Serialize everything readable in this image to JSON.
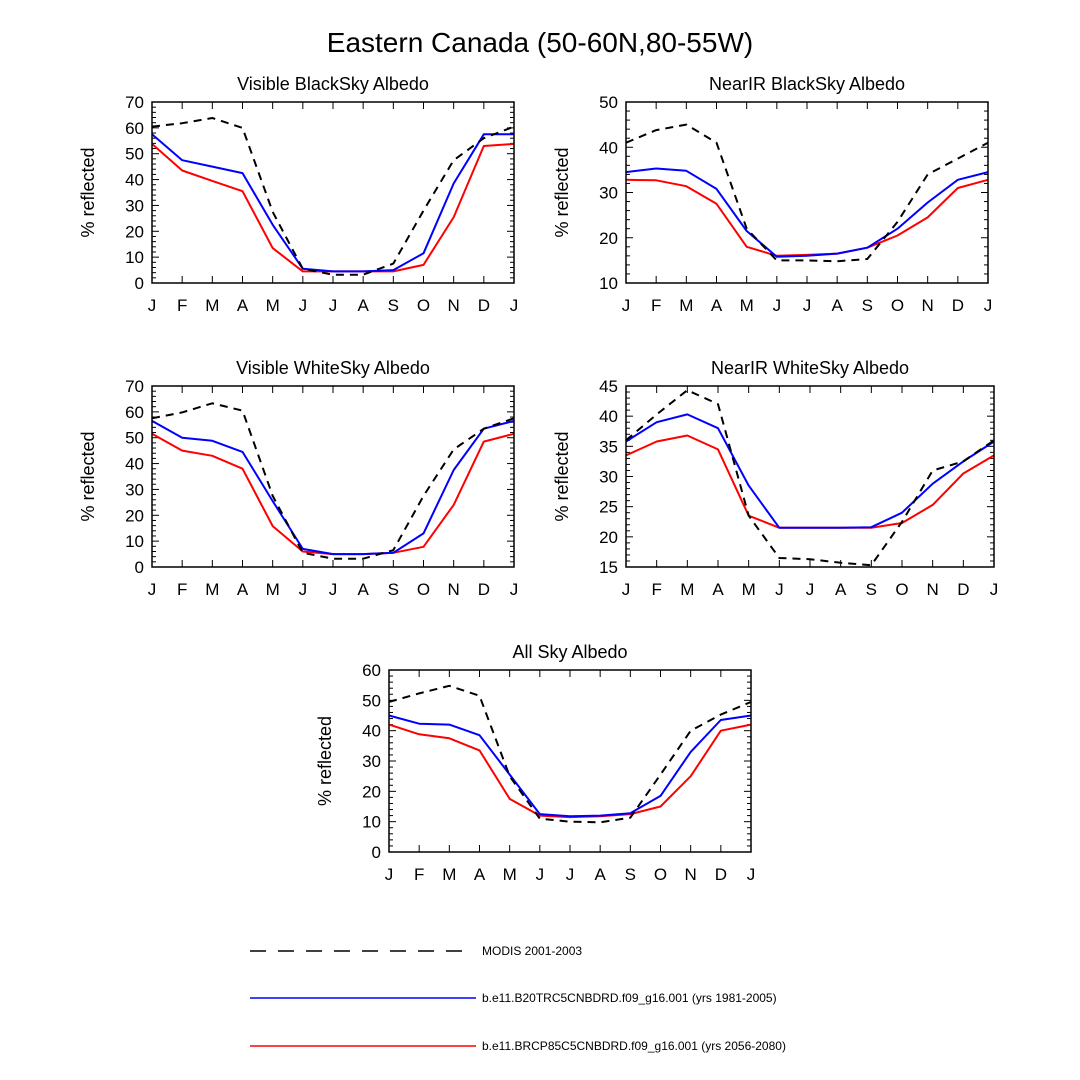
{
  "figure": {
    "title": "Eastern Canada (50-60N,80-55W)"
  },
  "legend": [
    {
      "key": "modis",
      "label": "MODIS 2001-2003",
      "color": "#000000",
      "dash": true
    },
    {
      "key": "hist",
      "label": "b.e11.B20TRC5CNBDRD.f09_g16.001 (yrs 1981-2005)",
      "color": "#0000ff",
      "dash": false
    },
    {
      "key": "future",
      "label": "b.e11.BRCP85C5CNBDRD.f09_g16.001 (yrs 2056-2080)",
      "color": "#ff0000",
      "dash": false
    }
  ],
  "chart_data": [
    {
      "type": "line",
      "title": "Visible BlackSky Albedo",
      "ylabel": "% reflected",
      "xlabel": "",
      "categories": [
        "J",
        "F",
        "M",
        "A",
        "M",
        "J",
        "J",
        "A",
        "S",
        "O",
        "N",
        "D",
        "J"
      ],
      "ylim": [
        0,
        70
      ],
      "yticks": [
        0,
        10,
        20,
        30,
        40,
        50,
        60,
        70
      ],
      "series": [
        {
          "name": "MODIS 2001-2003",
          "values": [
            60.5,
            61.8,
            63.8,
            60.0,
            27.5,
            5.5,
            3.2,
            3.2,
            7.5,
            28.0,
            47.5,
            56.0,
            60.5
          ]
        },
        {
          "name": "b.e11.B20TRC5CNBDRD.f09_g16.001 (yrs 1981-2005)",
          "values": [
            57.5,
            47.5,
            45.0,
            42.5,
            22.5,
            5.5,
            4.5,
            4.5,
            5.0,
            11.5,
            38.5,
            57.5,
            57.5
          ]
        },
        {
          "name": "b.e11.BRCP85C5CNBDRD.f09_g16.001 (yrs 2056-2080)",
          "values": [
            53.8,
            43.5,
            39.5,
            35.5,
            13.5,
            4.5,
            4.5,
            4.5,
            4.5,
            7.0,
            25.5,
            53.0,
            53.8
          ]
        }
      ]
    },
    {
      "type": "line",
      "title": "NearIR BlackSky Albedo",
      "ylabel": "% reflected",
      "xlabel": "",
      "categories": [
        "J",
        "F",
        "M",
        "A",
        "M",
        "J",
        "J",
        "A",
        "S",
        "O",
        "N",
        "D",
        "J"
      ],
      "ylim": [
        10,
        50
      ],
      "yticks": [
        10,
        20,
        30,
        40,
        50
      ],
      "series": [
        {
          "name": "MODIS 2001-2003",
          "values": [
            41.0,
            43.8,
            45.0,
            41.0,
            22.0,
            15.0,
            15.0,
            14.8,
            15.3,
            23.5,
            34.0,
            37.5,
            41.0
          ]
        },
        {
          "name": "b.e11.B20TRC5CNBDRD.f09_g16.001 (yrs 1981-2005)",
          "values": [
            34.5,
            35.3,
            34.8,
            30.8,
            21.5,
            15.8,
            16.0,
            16.5,
            17.8,
            22.0,
            27.8,
            32.8,
            34.5
          ]
        },
        {
          "name": "b.e11.BRCP85C5CNBDRD.f09_g16.001 (yrs 2056-2080)",
          "values": [
            32.8,
            32.7,
            31.4,
            27.5,
            18.0,
            16.0,
            16.2,
            16.5,
            17.8,
            20.5,
            24.5,
            31.0,
            32.8
          ]
        }
      ]
    },
    {
      "type": "line",
      "title": "Visible WhiteSky Albedo",
      "ylabel": "% reflected",
      "xlabel": "",
      "categories": [
        "J",
        "F",
        "M",
        "A",
        "M",
        "J",
        "J",
        "A",
        "S",
        "O",
        "N",
        "D",
        "J"
      ],
      "ylim": [
        0,
        70
      ],
      "yticks": [
        0,
        10,
        20,
        30,
        40,
        50,
        60,
        70
      ],
      "series": [
        {
          "name": "MODIS 2001-2003",
          "values": [
            57.5,
            59.8,
            63.3,
            60.5,
            27.5,
            5.5,
            3.2,
            3.2,
            6.5,
            27.5,
            45.5,
            53.5,
            57.5
          ]
        },
        {
          "name": "b.e11.B20TRC5CNBDRD.f09_g16.001 (yrs 1981-2005)",
          "values": [
            56.5,
            50.0,
            48.8,
            44.5,
            25.5,
            7.0,
            5.0,
            5.0,
            5.5,
            13.0,
            37.5,
            53.5,
            56.5
          ]
        },
        {
          "name": "b.e11.BRCP85C5CNBDRD.f09_g16.001 (yrs 2056-2080)",
          "values": [
            51.5,
            45.0,
            43.0,
            38.0,
            15.8,
            6.0,
            5.0,
            5.0,
            5.5,
            7.8,
            24.0,
            48.5,
            51.5
          ]
        }
      ]
    },
    {
      "type": "line",
      "title": "NearIR WhiteSky Albedo",
      "ylabel": "% reflected",
      "xlabel": "",
      "categories": [
        "J",
        "F",
        "M",
        "A",
        "M",
        "J",
        "J",
        "A",
        "S",
        "O",
        "N",
        "D",
        "J"
      ],
      "ylim": [
        15,
        45
      ],
      "yticks": [
        15,
        20,
        25,
        30,
        35,
        40,
        45
      ],
      "series": [
        {
          "name": "MODIS 2001-2003",
          "values": [
            36.0,
            40.3,
            44.3,
            42.0,
            23.5,
            16.5,
            16.3,
            15.7,
            15.3,
            22.5,
            31.0,
            32.5,
            36.0
          ]
        },
        {
          "name": "b.e11.B20TRC5CNBDRD.f09_g16.001 (yrs 1981-2005)",
          "values": [
            35.8,
            39.0,
            40.3,
            38.0,
            28.5,
            21.5,
            21.5,
            21.5,
            21.6,
            24.0,
            28.8,
            32.5,
            35.8
          ]
        },
        {
          "name": "b.e11.BRCP85C5CNBDRD.f09_g16.001 (yrs 2056-2080)",
          "values": [
            33.5,
            35.8,
            36.8,
            34.5,
            23.5,
            21.5,
            21.5,
            21.5,
            21.5,
            22.3,
            25.3,
            30.5,
            33.5
          ]
        }
      ]
    },
    {
      "type": "line",
      "title": "All Sky Albedo",
      "ylabel": "% reflected",
      "xlabel": "",
      "categories": [
        "J",
        "F",
        "M",
        "A",
        "M",
        "J",
        "J",
        "A",
        "S",
        "O",
        "N",
        "D",
        "J"
      ],
      "ylim": [
        0,
        60
      ],
      "yticks": [
        0,
        10,
        20,
        30,
        40,
        50,
        60
      ],
      "series": [
        {
          "name": "MODIS 2001-2003",
          "values": [
            49.5,
            52.3,
            54.8,
            51.5,
            25.0,
            11.0,
            10.0,
            9.8,
            11.3,
            25.5,
            40.0,
            45.3,
            49.5
          ]
        },
        {
          "name": "b.e11.B20TRC5CNBDRD.f09_g16.001 (yrs 1981-2005)",
          "values": [
            45.0,
            42.3,
            42.0,
            38.5,
            25.5,
            12.5,
            11.8,
            12.0,
            12.8,
            18.5,
            33.0,
            43.5,
            45.0
          ]
        },
        {
          "name": "b.e11.BRCP85C5CNBDRD.f09_g16.001 (yrs 2056-2080)",
          "values": [
            42.0,
            38.8,
            37.5,
            33.5,
            17.5,
            12.0,
            11.5,
            11.8,
            12.5,
            15.0,
            25.0,
            40.0,
            42.0
          ]
        }
      ]
    }
  ]
}
